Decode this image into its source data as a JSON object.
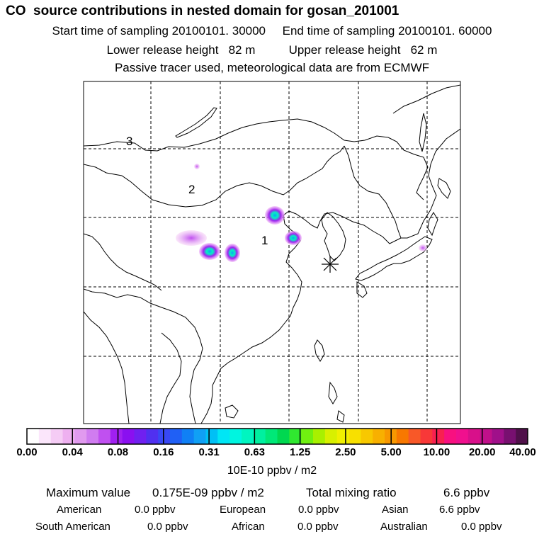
{
  "header": {
    "title": "CO  source contributions in nested domain for gosan_201001",
    "line1": "Start time of sampling 20100101. 30000     End time of sampling 20100101. 60000",
    "line2": "Lower release height   82 m          Upper release height   62 m",
    "line3": "Passive tracer used, meteorological data are from ECMWF"
  },
  "map": {
    "region_labels": [
      "1",
      "2",
      "3"
    ],
    "receptor_marker": "asterisk-icon"
  },
  "colorbar": {
    "tick_labels": [
      "0.00",
      "0.04",
      "0.08",
      "0.16",
      "0.31",
      "0.63",
      "1.25",
      "2.50",
      "5.00",
      "10.00",
      "20.00",
      "40.00"
    ],
    "unit": "10E-10 ppbv / m2",
    "colors": [
      "#ffffff",
      "#fbe6fb",
      "#f5ccf5",
      "#eeb0f0",
      "#e19aef",
      "#d07cf0",
      "#c050f0",
      "#a020f0",
      "#8a10f0",
      "#7020f0",
      "#5030f0",
      "#3848f5",
      "#2060f5",
      "#1080f5",
      "#10a0f5",
      "#00c0f5",
      "#00e6f5",
      "#00f5e0",
      "#00f5c0",
      "#00f0a0",
      "#00e878",
      "#00d850",
      "#30e830",
      "#70f010",
      "#a8f000",
      "#d8f000",
      "#f0f000",
      "#f8e000",
      "#f8c800",
      "#f8b000",
      "#f89800",
      "#f87800",
      "#f85828",
      "#f83838",
      "#f82050",
      "#f81080",
      "#f0108e",
      "#d8108a",
      "#c0108a",
      "#a0108a",
      "#781070",
      "#50104a"
    ]
  },
  "stats": {
    "max_label": "Maximum value",
    "max_value": "0.175E-09 ppbv / m2",
    "total_label": "Total mixing ratio",
    "total_value": "6.6 ppbv",
    "regions": [
      {
        "name": "American",
        "value": "0.0 ppbv"
      },
      {
        "name": "European",
        "value": "0.0 ppbv"
      },
      {
        "name": "Asian",
        "value": "6.6 ppbv"
      },
      {
        "name": "South American",
        "value": "0.0 ppbv"
      },
      {
        "name": "African",
        "value": "0.0 ppbv"
      },
      {
        "name": "Australian",
        "value": "0.0 ppbv"
      }
    ]
  }
}
